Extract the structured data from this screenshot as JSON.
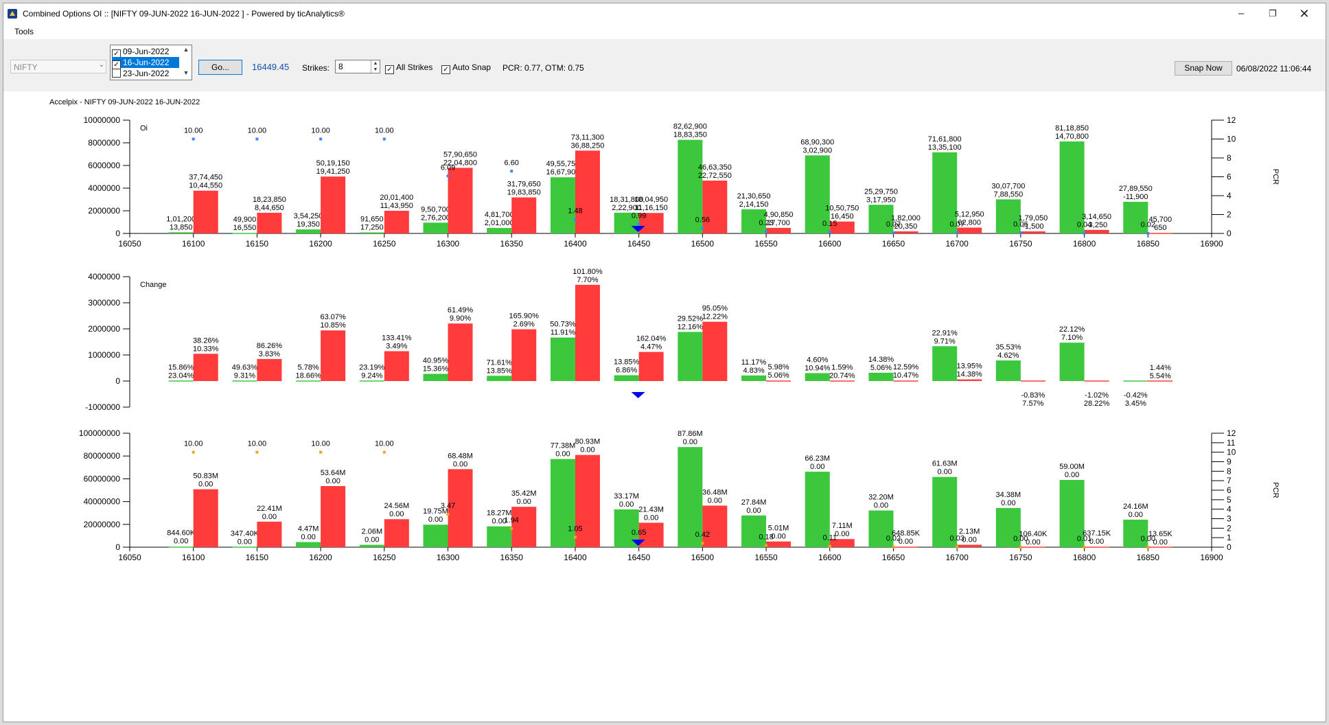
{
  "window": {
    "title": "Combined Options OI :: [NIFTY 09-JUN-2022 16-JUN-2022 ] - Powered by ticAnalytics®",
    "minimize_icon": "minimize-icon",
    "maximize_icon": "restore-icon",
    "close_icon": "close-icon"
  },
  "menu": {
    "tools": "Tools"
  },
  "toolbar": {
    "symbol": "NIFTY",
    "expiries": [
      {
        "label": "09-Jun-2022",
        "checked": true,
        "selected": false
      },
      {
        "label": "16-Jun-2022",
        "checked": true,
        "selected": true
      },
      {
        "label": "23-Jun-2022",
        "checked": false,
        "selected": false
      }
    ],
    "go_label": "Go...",
    "spot": "16449.45",
    "strikes_label": "Strikes:",
    "strikes_value": "8",
    "all_strikes_label": "All Strikes",
    "all_strikes_checked": true,
    "auto_snap_label": "Auto Snap",
    "auto_snap_checked": true,
    "pcr_text": "PCR: 0.77,  OTM: 0.75",
    "snap_label": "Snap Now",
    "datetime": "06/08/2022 11:06:44"
  },
  "chart_data": [
    {
      "type": "bar",
      "title": "Accelpix - NIFTY 09-JUN-2022 16-JUN-2022",
      "panel_label": "Oi",
      "y2label": "PCR",
      "xlim": [
        16050,
        16900
      ],
      "x_ticks": [
        16050,
        16100,
        16150,
        16200,
        16250,
        16300,
        16350,
        16400,
        16450,
        16500,
        16550,
        16600,
        16650,
        16700,
        16750,
        16800,
        16850,
        16900
      ],
      "ylim": [
        0,
        10000000
      ],
      "y_ticks": [
        0,
        2000000,
        4000000,
        6000000,
        8000000,
        10000000
      ],
      "y2lim": [
        0,
        12
      ],
      "y2_ticks": [
        0,
        2,
        4,
        6,
        8,
        10,
        12
      ],
      "strikes": [
        16100,
        16150,
        16200,
        16250,
        16300,
        16350,
        16400,
        16450,
        16500,
        16550,
        16600,
        16650,
        16700,
        16750,
        16800,
        16850
      ],
      "series": [
        {
          "name": "Put OI",
          "color": "#3cc83c",
          "values": [
            101200,
            49900,
            354250,
            91650,
            950700,
            481700,
            4955750,
            1831800,
            8262900,
            2130650,
            6890300,
            2529750,
            7161800,
            3007700,
            8118850,
            2789550
          ]
        },
        {
          "name": "Call OI",
          "color": "#ff3b3b",
          "values": [
            3774450,
            1823850,
            5019150,
            2001400,
            5790650,
            3179650,
            7311300,
            1804950,
            4663350,
            490850,
            1050750,
            182000,
            512950,
            179050,
            314650,
            45700
          ]
        }
      ],
      "put_labels": [
        [
          "1,01,200",
          "13,850"
        ],
        [
          "49,900",
          "16,550"
        ],
        [
          "3,54,250",
          "19,350"
        ],
        [
          "91,650",
          "17,250"
        ],
        [
          "9,50,700",
          "2,76,200"
        ],
        [
          "4,81,700",
          "2,01,000"
        ],
        [
          "49,55,750",
          "16,67,900"
        ],
        [
          "18,31,800",
          "2,22,900"
        ],
        [
          "82,62,900",
          "18,83,350"
        ],
        [
          "21,30,650",
          "2,14,150"
        ],
        [
          "68,90,300",
          "3,02,900"
        ],
        [
          "25,29,750",
          "3,17,950"
        ],
        [
          "71,61,800",
          "13,35,100"
        ],
        [
          "30,07,700",
          "7,88,550"
        ],
        [
          "81,18,850",
          "14,70,800"
        ],
        [
          "27,89,550",
          "-11,900"
        ]
      ],
      "call_labels": [
        [
          "37,74,450",
          "10,44,550"
        ],
        [
          "18,23,850",
          "8,44,650"
        ],
        [
          "50,19,150",
          "19,41,250"
        ],
        [
          "20,01,400",
          "11,43,950"
        ],
        [
          "57,90,650",
          "22,04,800"
        ],
        [
          "31,79,650",
          "19,83,850"
        ],
        [
          "73,11,300",
          "36,88,250"
        ],
        [
          "18,04,950",
          "11,16,150"
        ],
        [
          "46,63,350",
          "22,72,550"
        ],
        [
          "4,90,850",
          "27,700"
        ],
        [
          "10,50,750",
          "16,450"
        ],
        [
          "1,82,000",
          "20,350"
        ],
        [
          "5,12,950",
          "62,800"
        ],
        [
          "1,79,050",
          "-1,500"
        ],
        [
          "3,14,650",
          "-3,250"
        ],
        [
          "45,700",
          "650"
        ]
      ],
      "pcr": [
        10.0,
        10.0,
        10.0,
        10.0,
        6.09,
        6.6,
        1.48,
        0.99,
        0.56,
        0.23,
        0.15,
        0.07,
        0.07,
        0.06,
        0.04,
        0.02
      ],
      "pcr_labels": [
        "10.00",
        "10.00",
        "10.00",
        "10.00",
        "6.09",
        "6.60",
        "1.48",
        "0.99",
        "0.56",
        "0.23",
        "0.15",
        "0.07",
        "0.07",
        "0.06",
        "0.04",
        "0.02"
      ],
      "spot_marker": 16449.45
    },
    {
      "type": "bar",
      "panel_label": "Change",
      "xlim": [
        16050,
        16900
      ],
      "ylim": [
        -1000000,
        4000000
      ],
      "y_ticks": [
        -1000000,
        0,
        1000000,
        2000000,
        3000000,
        4000000
      ],
      "strikes": [
        16100,
        16150,
        16200,
        16250,
        16300,
        16350,
        16400,
        16450,
        16500,
        16550,
        16600,
        16650,
        16700,
        16750,
        16800,
        16850
      ],
      "series": [
        {
          "name": "Put Change",
          "color": "#3cc83c",
          "values": [
            13850,
            16550,
            19350,
            17250,
            276200,
            201000,
            1667900,
            222900,
            1883350,
            214150,
            302900,
            317950,
            1335100,
            788550,
            1470800,
            -11900
          ]
        },
        {
          "name": "Call Change",
          "color": "#ff3b3b",
          "values": [
            1044550,
            844650,
            1941250,
            1143950,
            2204800,
            1983850,
            3688250,
            1116150,
            2272550,
            27700,
            16450,
            20350,
            62800,
            -1500,
            -3250,
            650
          ]
        }
      ],
      "put_labels": [
        [
          "15.86%",
          "23.04%"
        ],
        [
          "49.63%",
          "9.31%"
        ],
        [
          "5.78%",
          "18.66%"
        ],
        [
          "23.19%",
          "9.24%"
        ],
        [
          "40.95%",
          "15.36%"
        ],
        [
          "71.61%",
          "13.85%"
        ],
        [
          "50.73%",
          "11.91%"
        ],
        [
          "13.85%",
          "6.86%"
        ],
        [
          "29.52%",
          "12.16%"
        ],
        [
          "11.17%",
          "4.83%"
        ],
        [
          "4.60%",
          "10.94%"
        ],
        [
          "14.38%",
          "5.06%"
        ],
        [
          "22.91%",
          "9.71%"
        ],
        [
          "35.53%",
          "4.62%"
        ],
        [
          "22.12%",
          "7.10%"
        ],
        [
          "-0.42%",
          "3.45%"
        ]
      ],
      "call_labels": [
        [
          "38.26%",
          "10.33%"
        ],
        [
          "86.26%",
          "3.83%"
        ],
        [
          "63.07%",
          "10.85%"
        ],
        [
          "133.41%",
          "3.49%"
        ],
        [
          "61.49%",
          "9.90%"
        ],
        [
          "165.90%",
          "2.69%"
        ],
        [
          "101.80%",
          "7.70%"
        ],
        [
          "162.04%",
          "4.47%"
        ],
        [
          "95.05%",
          "12.22%"
        ],
        [
          "5.98%",
          "5.06%"
        ],
        [
          "1.59%",
          "20.74%"
        ],
        [
          "12.59%",
          "10.47%"
        ],
        [
          "13.95%",
          "14.38%"
        ],
        [
          "-0.83%",
          "7.57%"
        ],
        [
          "-1.02%",
          "28.22%"
        ],
        [
          "1.44%",
          "5.54%"
        ]
      ],
      "spot_marker": 16449.45
    },
    {
      "type": "bar",
      "y2label": "PCR",
      "xlim": [
        16050,
        16900
      ],
      "x_ticks": [
        16050,
        16100,
        16150,
        16200,
        16250,
        16300,
        16350,
        16400,
        16450,
        16500,
        16550,
        16600,
        16650,
        16700,
        16750,
        16800,
        16850,
        16900
      ],
      "ylim": [
        0,
        100000000
      ],
      "y_ticks": [
        0,
        20000000,
        40000000,
        60000000,
        80000000,
        100000000
      ],
      "y2lim": [
        0,
        12
      ],
      "y2_ticks": [
        0,
        1,
        2,
        3,
        4,
        5,
        6,
        7,
        8,
        9,
        10,
        11,
        12
      ],
      "strikes": [
        16100,
        16150,
        16200,
        16250,
        16300,
        16350,
        16400,
        16450,
        16500,
        16550,
        16600,
        16650,
        16700,
        16750,
        16800,
        16850
      ],
      "series": [
        {
          "name": "Put Value",
          "color": "#3cc83c",
          "values": [
            844600,
            347400,
            4470000,
            2060000,
            19750000,
            18270000,
            77380000,
            33170000,
            87860000,
            27840000,
            66230000,
            32200000,
            61630000,
            34380000,
            59000000,
            24160000
          ]
        },
        {
          "name": "Call Value",
          "color": "#ff3b3b",
          "values": [
            50830000,
            22410000,
            53640000,
            24560000,
            68480000,
            35420000,
            80930000,
            21430000,
            36480000,
            5010000,
            7110000,
            648850,
            2130000,
            106400,
            637150,
            13650
          ]
        }
      ],
      "put_labels": [
        [
          "844.60K",
          "0.00"
        ],
        [
          "347.40K",
          "0.00"
        ],
        [
          "4.47M",
          "0.00"
        ],
        [
          "2.06M",
          "0.00"
        ],
        [
          "19.75M",
          "0.00"
        ],
        [
          "18.27M",
          "0.00"
        ],
        [
          "77.38M",
          "0.00"
        ],
        [
          "33.17M",
          "0.00"
        ],
        [
          "87.86M",
          "0.00"
        ],
        [
          "27.84M",
          "0.00"
        ],
        [
          "66.23M",
          "0.00"
        ],
        [
          "32.20M",
          "0.00"
        ],
        [
          "61.63M",
          "0.00"
        ],
        [
          "34.38M",
          "0.00"
        ],
        [
          "59.00M",
          "0.00"
        ],
        [
          "24.16M",
          "0.00"
        ]
      ],
      "call_labels": [
        [
          "50.83M",
          "0.00"
        ],
        [
          "22.41M",
          "0.00"
        ],
        [
          "53.64M",
          "0.00"
        ],
        [
          "24.56M",
          "0.00"
        ],
        [
          "68.48M",
          "0.00"
        ],
        [
          "35.42M",
          "0.00"
        ],
        [
          "80.93M",
          "0.00"
        ],
        [
          "21.43M",
          "0.00"
        ],
        [
          "36.48M",
          "0.00"
        ],
        [
          "5.01M",
          "0.00"
        ],
        [
          "7.11M",
          "0.00"
        ],
        [
          "648.85K",
          "0.00"
        ],
        [
          "2.13M",
          "0.00"
        ],
        [
          "106.40K",
          "0.00"
        ],
        [
          "637.15K",
          "0.00"
        ],
        [
          "13.65K",
          "0.00"
        ]
      ],
      "pcr": [
        10.0,
        10.0,
        10.0,
        10.0,
        3.47,
        1.94,
        1.05,
        0.65,
        0.42,
        0.18,
        0.11,
        0.02,
        0.03,
        0.0,
        0.01,
        0.0
      ],
      "pcr_labels": [
        "10.00",
        "10.00",
        "10.00",
        "10.00",
        "3.47",
        "1.94",
        "1.05",
        "0.65",
        "0.42",
        "0.18",
        "0.11",
        "0.02",
        "0.03",
        "0.00",
        "0.01",
        "0.00"
      ],
      "spot_marker": 16449.45
    }
  ]
}
